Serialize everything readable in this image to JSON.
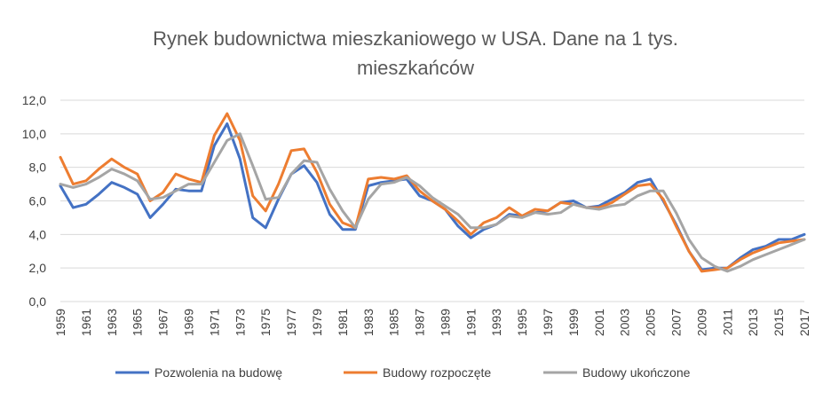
{
  "chart_data": {
    "type": "line",
    "title": "Rynek budownictwa mieszkaniowego w USA. Dane na 1 tys. mieszkańców",
    "title_lines": [
      "Rynek budownictwa mieszkaniowego w USA. Dane na 1 tys.",
      "mieszkańców"
    ],
    "x": [
      1959,
      1960,
      1961,
      1962,
      1963,
      1964,
      1965,
      1966,
      1967,
      1968,
      1969,
      1970,
      1971,
      1972,
      1973,
      1974,
      1975,
      1976,
      1977,
      1978,
      1979,
      1980,
      1981,
      1982,
      1983,
      1984,
      1985,
      1986,
      1987,
      1988,
      1989,
      1990,
      1991,
      1992,
      1993,
      1994,
      1995,
      1996,
      1997,
      1998,
      1999,
      2000,
      2001,
      2002,
      2003,
      2004,
      2005,
      2006,
      2007,
      2008,
      2009,
      2010,
      2011,
      2012,
      2013,
      2014,
      2015,
      2016,
      2017
    ],
    "x_tick_labels": [
      "1959",
      "1961",
      "1963",
      "1965",
      "1967",
      "1969",
      "1971",
      "1973",
      "1975",
      "1977",
      "1979",
      "1981",
      "1983",
      "1985",
      "1987",
      "1989",
      "1991",
      "1993",
      "1995",
      "1997",
      "1999",
      "2001",
      "2003",
      "2005",
      "2007",
      "2009",
      "2011",
      "2013",
      "2015",
      "2017"
    ],
    "y_tick_labels": [
      "0,0",
      "2,0",
      "4,0",
      "6,0",
      "8,0",
      "10,0",
      "12,0"
    ],
    "ylim": [
      0,
      12
    ],
    "grid": true,
    "legend_position": "bottom",
    "series": [
      {
        "name": "Pozwolenia na budowę",
        "color": "#4472c4",
        "values": [
          6.9,
          5.6,
          5.8,
          6.4,
          7.1,
          6.8,
          6.4,
          5.0,
          5.8,
          6.7,
          6.6,
          6.6,
          9.3,
          10.6,
          8.5,
          5.0,
          4.4,
          6.1,
          7.6,
          8.1,
          7.1,
          5.2,
          4.3,
          4.3,
          6.9,
          7.1,
          7.2,
          7.3,
          6.3,
          6.0,
          5.5,
          4.5,
          3.8,
          4.3,
          4.6,
          5.2,
          5.1,
          5.3,
          5.4,
          5.9,
          6.0,
          5.6,
          5.7,
          6.1,
          6.5,
          7.1,
          7.3,
          6.0,
          4.6,
          3.0,
          1.9,
          2.0,
          2.0,
          2.6,
          3.1,
          3.3,
          3.7,
          3.7,
          4.0
        ]
      },
      {
        "name": "Budowy rozpoczęte",
        "color": "#ed7d31",
        "values": [
          8.6,
          7.0,
          7.2,
          7.9,
          8.5,
          8.0,
          7.6,
          6.0,
          6.5,
          7.6,
          7.3,
          7.1,
          9.9,
          11.2,
          9.6,
          6.3,
          5.4,
          7.0,
          9.0,
          9.1,
          7.7,
          5.8,
          4.7,
          4.4,
          7.3,
          7.4,
          7.3,
          7.5,
          6.6,
          6.0,
          5.5,
          4.8,
          4.0,
          4.7,
          5.0,
          5.6,
          5.1,
          5.5,
          5.4,
          5.9,
          5.8,
          5.6,
          5.6,
          5.9,
          6.4,
          6.9,
          7.0,
          6.1,
          4.5,
          3.0,
          1.8,
          1.9,
          2.0,
          2.5,
          2.9,
          3.2,
          3.5,
          3.6,
          3.7
        ]
      },
      {
        "name": "Budowy ukończone",
        "color": "#a5a5a5",
        "values": [
          7.0,
          6.8,
          7.0,
          7.4,
          7.9,
          7.6,
          7.2,
          6.1,
          6.2,
          6.6,
          7.0,
          7.0,
          8.3,
          9.6,
          10.0,
          8.1,
          6.1,
          6.2,
          7.6,
          8.4,
          8.3,
          6.7,
          5.4,
          4.4,
          6.1,
          7.0,
          7.1,
          7.4,
          6.9,
          6.2,
          5.7,
          5.2,
          4.4,
          4.4,
          4.6,
          5.1,
          5.0,
          5.3,
          5.2,
          5.3,
          5.8,
          5.6,
          5.5,
          5.7,
          5.8,
          6.3,
          6.6,
          6.6,
          5.3,
          3.7,
          2.6,
          2.1,
          1.8,
          2.1,
          2.5,
          2.8,
          3.1,
          3.4,
          3.7
        ]
      }
    ]
  }
}
